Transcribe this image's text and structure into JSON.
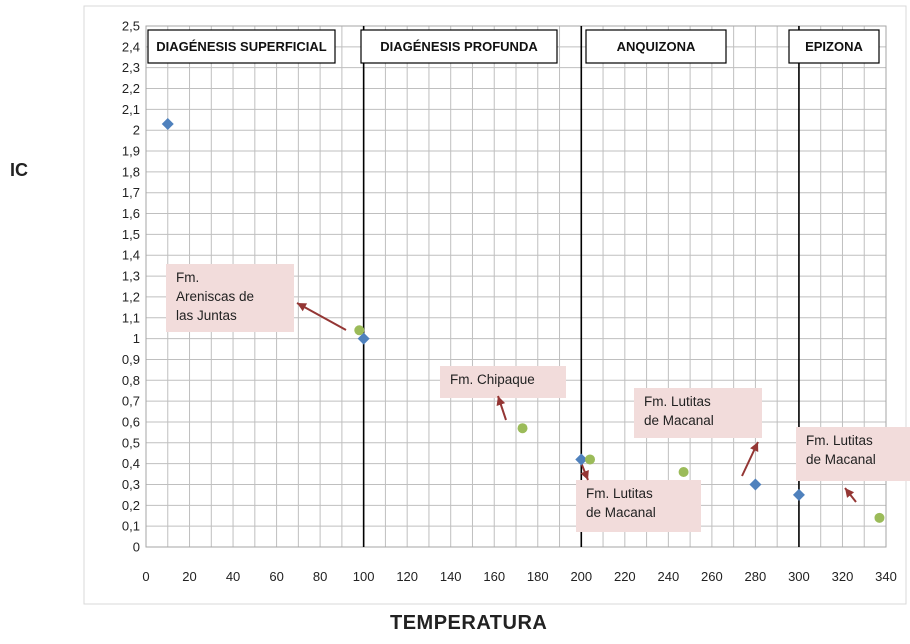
{
  "chart_data": {
    "type": "scatter",
    "xlabel": "TEMPERATURA",
    "ylabel": "IC",
    "xlim": [
      0,
      340
    ],
    "ylim": [
      0,
      2.5
    ],
    "x_ticks": [
      "0",
      "20",
      "40",
      "60",
      "80",
      "100",
      "120",
      "140",
      "160",
      "180",
      "200",
      "220",
      "240",
      "260",
      "280",
      "300",
      "320",
      "340"
    ],
    "y_ticks": [
      "0",
      "0,1",
      "0,2",
      "0,3",
      "0,4",
      "0,5",
      "0,6",
      "0,7",
      "0,8",
      "0,9",
      "1",
      "1,1",
      "1,2",
      "1,3",
      "1,4",
      "1,5",
      "1,6",
      "1,7",
      "1,8",
      "1,9",
      "2",
      "2,1",
      "2,2",
      "2,3",
      "2,4",
      "2,5"
    ],
    "grid": true,
    "zone_boundaries": [
      100,
      200,
      300
    ],
    "zones": [
      {
        "label": "DIAGÉNESIS SUPERFICIAL",
        "x_from": 0,
        "x_to": 100
      },
      {
        "label": "DIAGÉNESIS PROFUNDA",
        "x_from": 100,
        "x_to": 200
      },
      {
        "label": "ANQUIZONA",
        "x_from": 200,
        "x_to": 300
      },
      {
        "label": "EPIZONA",
        "x_from": 300,
        "x_to": 340
      }
    ],
    "series": [
      {
        "marker": "diamond",
        "color": "#4f81bd",
        "points": [
          {
            "x": 10,
            "y": 2.03
          },
          {
            "x": 100,
            "y": 1.0
          },
          {
            "x": 200,
            "y": 0.42
          },
          {
            "x": 280,
            "y": 0.3
          },
          {
            "x": 300,
            "y": 0.25
          }
        ]
      },
      {
        "marker": "circle",
        "color": "#9bbb59",
        "points": [
          {
            "x": 98,
            "y": 1.04
          },
          {
            "x": 173,
            "y": 0.57
          },
          {
            "x": 204,
            "y": 0.42
          },
          {
            "x": 247,
            "y": 0.36
          },
          {
            "x": 337,
            "y": 0.14
          }
        ]
      }
    ],
    "annotations": [
      {
        "lines": [
          "Fm.",
          "Areniscas de",
          "las Juntas"
        ],
        "point_index": 0
      },
      {
        "lines": [
          "Fm. Chipaque"
        ],
        "point_index": 1
      },
      {
        "lines": [
          "Fm. Lutitas",
          "de Macanal"
        ],
        "point_index": 2
      },
      {
        "lines": [
          "Fm. Lutitas",
          "de Macanal"
        ],
        "point_index": 3
      },
      {
        "lines": [
          "Fm. Lutitas",
          "de Macanal"
        ],
        "point_index": 4
      }
    ],
    "colors": {
      "annotation_box": "#f2dcdb",
      "arrow": "#943634",
      "zone_line": "#000000",
      "grid": "#bfbfbf"
    }
  }
}
